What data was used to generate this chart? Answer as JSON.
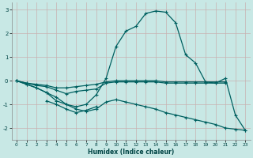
{
  "title": "",
  "xlabel": "Humidex (Indice chaleur)",
  "background_color": "#c8e8e5",
  "grid_color": "#d0e8e4",
  "line_color": "#006060",
  "x": [
    0,
    1,
    2,
    3,
    4,
    5,
    6,
    7,
    8,
    9,
    10,
    11,
    12,
    13,
    14,
    15,
    16,
    17,
    18,
    19,
    20,
    21,
    22,
    23
  ],
  "curve_main": [
    0.0,
    -0.15,
    -0.3,
    -0.5,
    -0.7,
    -1.0,
    -1.1,
    -1.0,
    -0.6,
    0.1,
    1.45,
    2.1,
    2.3,
    2.85,
    2.95,
    2.9,
    2.45,
    1.1,
    0.75,
    -0.05,
    -0.1,
    0.1,
    -1.45,
    -2.1
  ],
  "curve_flat1": [
    0.0,
    -0.1,
    -0.15,
    -0.2,
    -0.3,
    -0.3,
    -0.25,
    -0.2,
    -0.15,
    -0.05,
    0.0,
    0.0,
    0.0,
    0.0,
    0.0,
    -0.05,
    -0.05,
    -0.05,
    -0.05,
    -0.05,
    -0.05,
    -0.05,
    null,
    null
  ],
  "curve_flat2": [
    0.0,
    -0.1,
    -0.2,
    -0.25,
    -0.4,
    -0.55,
    -0.45,
    -0.4,
    -0.35,
    -0.1,
    -0.05,
    -0.05,
    -0.05,
    -0.05,
    -0.05,
    -0.1,
    -0.1,
    -0.1,
    -0.1,
    -0.1,
    -0.1,
    -0.1,
    null,
    null
  ],
  "curve_dip": [
    0.0,
    -0.15,
    -0.3,
    -0.5,
    -0.85,
    -1.0,
    -1.2,
    -1.3,
    -1.2,
    -0.9,
    -0.8,
    -0.9,
    -1.0,
    -1.1,
    -1.2,
    -1.35,
    -1.45,
    -1.55,
    -1.65,
    -1.75,
    -1.85,
    -2.0,
    -2.05,
    -2.1
  ],
  "curve_dip2": [
    null,
    null,
    null,
    -0.85,
    -1.0,
    -1.2,
    -1.35,
    -1.25,
    -1.1,
    null,
    null,
    null,
    null,
    null,
    null,
    null,
    null,
    null,
    null,
    null,
    null,
    null,
    null,
    null
  ],
  "ylim": [
    -2.5,
    3.3
  ],
  "xlim": [
    -0.5,
    23.5
  ],
  "yticks": [
    -2,
    -1,
    0,
    1,
    2,
    3
  ],
  "xticks": [
    0,
    1,
    2,
    3,
    4,
    5,
    6,
    7,
    8,
    9,
    10,
    11,
    12,
    13,
    14,
    15,
    16,
    17,
    18,
    19,
    20,
    21,
    22,
    23
  ]
}
